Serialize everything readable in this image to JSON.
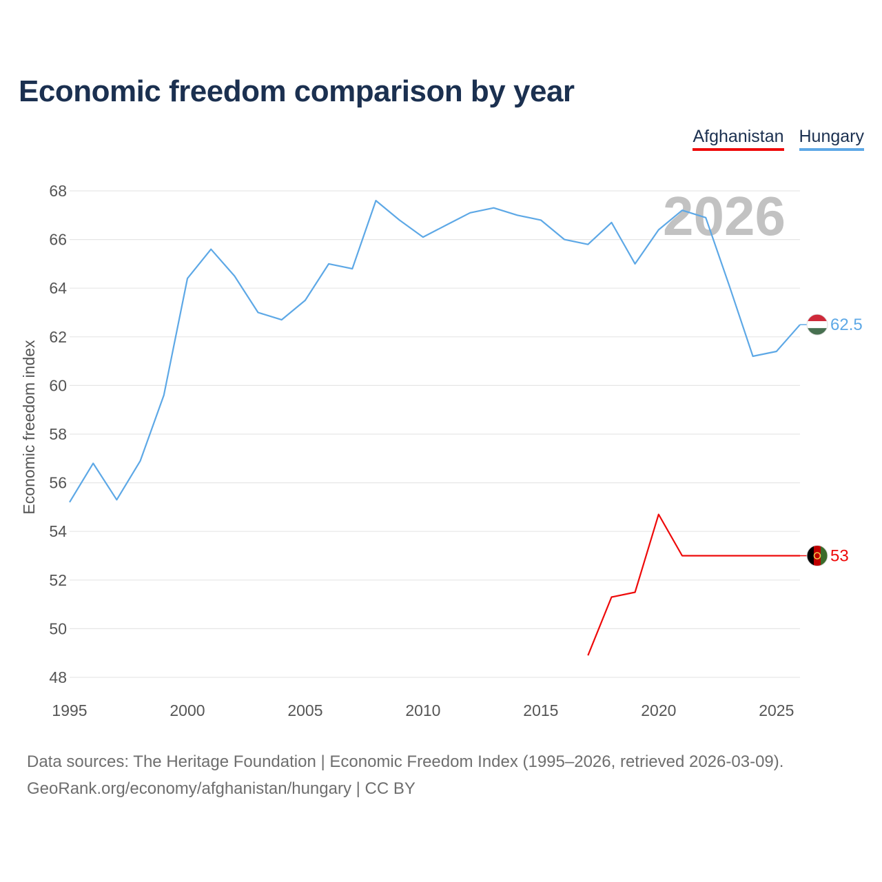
{
  "chart_data": {
    "type": "line",
    "title": "Economic freedom comparison by year",
    "ylabel": "Economic freedom index",
    "xlabel": "",
    "ylim": [
      48,
      68
    ],
    "xlim": [
      1995,
      2026
    ],
    "yticks": [
      48,
      50,
      52,
      54,
      56,
      58,
      60,
      62,
      64,
      66,
      68
    ],
    "xticks": [
      1995,
      2000,
      2005,
      2010,
      2015,
      2020,
      2025
    ],
    "grid": true,
    "legend": "top-right",
    "year_label": "2026",
    "series": [
      {
        "name": "Afghanistan",
        "color": "#ee0a0a",
        "end_label": "53",
        "flag": "afghanistan-flag",
        "x": [
          2017,
          2018,
          2019,
          2020,
          2021,
          2022,
          2023,
          2024,
          2025,
          2026
        ],
        "values": [
          48.9,
          51.3,
          51.5,
          54.7,
          53.0,
          53.0,
          53.0,
          53.0,
          53.0,
          53.0
        ]
      },
      {
        "name": "Hungary",
        "color": "#5da8e6",
        "end_label": "62.5",
        "flag": "hungary-flag",
        "x": [
          1995,
          1996,
          1997,
          1998,
          1999,
          2000,
          2001,
          2002,
          2003,
          2004,
          2005,
          2006,
          2007,
          2008,
          2009,
          2010,
          2011,
          2012,
          2013,
          2014,
          2015,
          2016,
          2017,
          2018,
          2019,
          2020,
          2021,
          2022,
          2023,
          2024,
          2025,
          2026
        ],
        "values": [
          55.2,
          56.8,
          55.3,
          56.9,
          59.6,
          64.4,
          65.6,
          64.5,
          63.0,
          62.7,
          63.5,
          65.0,
          64.8,
          67.6,
          66.8,
          66.1,
          66.6,
          67.1,
          67.3,
          67.0,
          66.8,
          66.0,
          65.8,
          66.7,
          65.0,
          66.4,
          67.2,
          66.9,
          64.1,
          61.2,
          61.4,
          62.5
        ]
      }
    ]
  },
  "footer": {
    "line1": "Data sources: The Heritage Foundation | Economic Freedom Index (1995–2026, retrieved 2026-03-09).",
    "line2": "GeoRank.org/economy/afghanistan/hungary | CC BY"
  }
}
